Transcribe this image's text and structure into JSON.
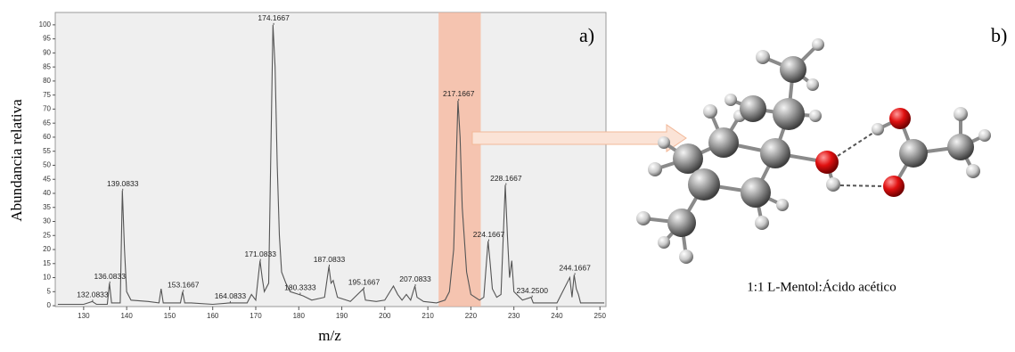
{
  "chart_data": {
    "type": "line",
    "panel_label": "a)",
    "ylabel": "Abundancia relativa",
    "xlabel": "m/z",
    "x": [
      124,
      130,
      132,
      133,
      135.5,
      136,
      136.5,
      138.5,
      139,
      139.5,
      140,
      141,
      145,
      147.5,
      148,
      148.5,
      152.5,
      153,
      153.5,
      155,
      160,
      164,
      168,
      169,
      170,
      171,
      171.5,
      172,
      173,
      174,
      174.5,
      175,
      175.5,
      176,
      177,
      178,
      180,
      181,
      183,
      186,
      187,
      187.5,
      188,
      189,
      192,
      195,
      195.5,
      198,
      200,
      202,
      203,
      204,
      205,
      206,
      207,
      207.5,
      209,
      212,
      214,
      215,
      216,
      217,
      217.5,
      218,
      219,
      220,
      222,
      223,
      224,
      224.5,
      225,
      226,
      227,
      228,
      228.5,
      229,
      229.5,
      230,
      232,
      234,
      234.5,
      236,
      240,
      243,
      243.5,
      244,
      244.5,
      245,
      245.5,
      248,
      251
    ],
    "values": [
      0.5,
      0.5,
      1.5,
      0.5,
      0.5,
      8,
      1,
      1,
      41,
      20,
      5,
      2,
      1.5,
      1,
      6,
      1,
      1,
      5,
      1,
      1,
      0.5,
      1,
      1,
      4,
      2,
      16,
      10,
      5,
      8,
      100,
      85,
      50,
      25,
      12,
      8,
      5,
      4,
      3.5,
      2,
      3,
      14,
      8,
      9,
      3,
      1.5,
      6,
      2,
      1.5,
      2,
      7,
      4,
      2,
      4,
      2,
      7,
      3,
      1.5,
      1,
      2,
      5,
      20,
      73,
      60,
      35,
      12,
      4,
      2,
      3,
      23,
      15,
      6,
      3,
      4,
      43,
      25,
      10,
      16,
      5,
      2,
      3,
      1,
      1,
      1,
      10,
      3,
      11,
      6,
      4,
      1,
      1,
      1
    ],
    "color": "#555555",
    "peaks": [
      {
        "mz": 132.0833,
        "abundance": 1.5
      },
      {
        "mz": 136.0833,
        "abundance": 8
      },
      {
        "mz": 139.0833,
        "abundance": 41
      },
      {
        "mz": 153.1667,
        "abundance": 5
      },
      {
        "mz": 164.0833,
        "abundance": 1
      },
      {
        "mz": 171.0833,
        "abundance": 16
      },
      {
        "mz": 174.1667,
        "abundance": 100
      },
      {
        "mz": 180.3333,
        "abundance": 4
      },
      {
        "mz": 187.0833,
        "abundance": 14
      },
      {
        "mz": 195.1667,
        "abundance": 6
      },
      {
        "mz": 207.0833,
        "abundance": 7
      },
      {
        "mz": 217.1667,
        "abundance": 73
      },
      {
        "mz": 224.1667,
        "abundance": 23
      },
      {
        "mz": 228.1667,
        "abundance": 43
      },
      {
        "mz": {
          "value": 234.25,
          "label": "234.2500"
        },
        "abundance": 3
      },
      {
        "mz": 244.1667,
        "abundance": 11
      }
    ],
    "highlight": [
      212.5,
      222.3
    ],
    "highlight_color": "#f7b59b",
    "xlim": [
      123.4,
      251.4
    ],
    "xticks": [
      130,
      140,
      150,
      160,
      170,
      180,
      190,
      200,
      210,
      220,
      230,
      240,
      250
    ],
    "ylim": [
      -0.3,
      104.4
    ],
    "yticks": [
      0,
      5,
      10,
      15,
      20,
      25,
      30,
      35,
      40,
      45,
      50,
      55,
      60,
      65,
      70,
      75,
      80,
      85,
      90,
      95,
      100
    ]
  },
  "diagram": {
    "panel_label": "b)",
    "caption": "1:1 L-Mentol:Ácido acético"
  }
}
